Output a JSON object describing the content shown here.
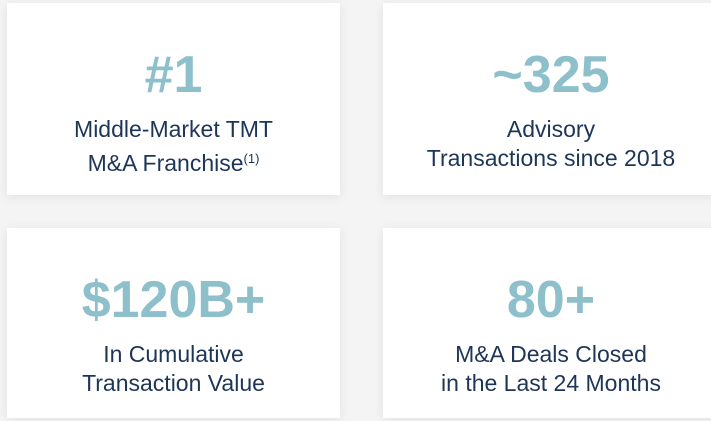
{
  "cards": [
    {
      "value": "#1",
      "lines": [
        "Middle-Market TMT",
        "M&A Franchise"
      ],
      "footnote": "(1)"
    },
    {
      "value": "~325",
      "lines": [
        "Advisory",
        "Transactions since 2018"
      ]
    },
    {
      "value": "$120B+",
      "lines": [
        "In Cumulative",
        "Transaction Value"
      ]
    },
    {
      "value": "80+",
      "lines": [
        "M&A Deals Closed",
        "in the Last 24 Months"
      ]
    }
  ]
}
